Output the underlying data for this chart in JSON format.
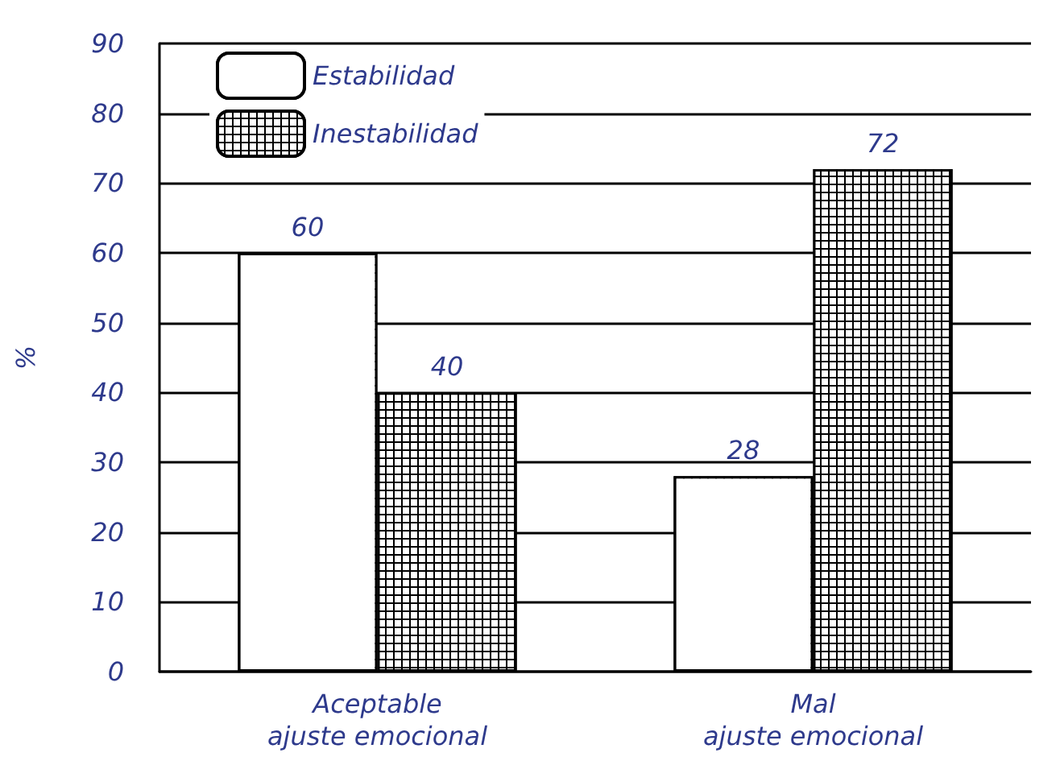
{
  "chart_data": {
    "type": "bar",
    "ylabel": "%",
    "categories": [
      "Aceptable\najuste emocional",
      "Mal\najuste emocional"
    ],
    "series": [
      {
        "name": "Estabilidad",
        "color": "#ffffff",
        "values": [
          60,
          28
        ]
      },
      {
        "name": "Inestabilidad",
        "color": "#000000",
        "values": [
          40,
          72
        ]
      }
    ],
    "ylim": [
      0,
      90
    ],
    "yticks": [
      0,
      10,
      20,
      30,
      40,
      50,
      60,
      70,
      80,
      90
    ],
    "grid": "y",
    "legend": "top left",
    "data_labels": true
  }
}
